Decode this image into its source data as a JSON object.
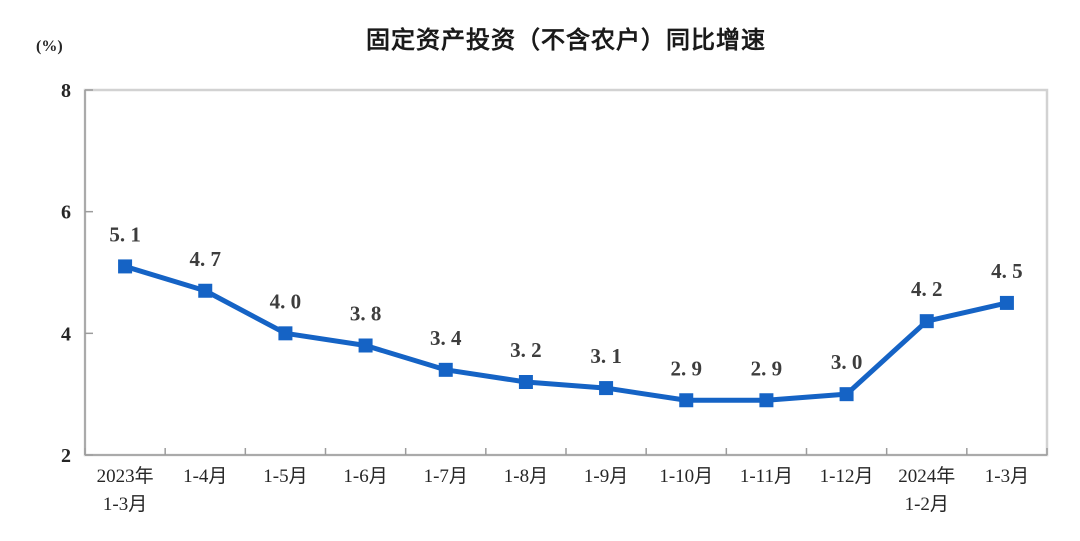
{
  "page": {
    "title": "固定资产投资（不含农户）同比增速",
    "unit_label": "(%)"
  },
  "chart_data": {
    "type": "line",
    "title": "固定资产投资（不含农户）同比增速",
    "ylabel": "(%)",
    "xlabel": "",
    "categories": [
      "2023年\n1-3月",
      "1-4月",
      "1-5月",
      "1-6月",
      "1-7月",
      "1-8月",
      "1-9月",
      "1-10月",
      "1-11月",
      "1-12月",
      "2024年\n1-2月",
      "1-3月"
    ],
    "values": [
      5.1,
      4.7,
      4.0,
      3.8,
      3.4,
      3.2,
      3.1,
      2.9,
      2.9,
      3.0,
      4.2,
      4.5
    ],
    "point_labels": [
      "5. 1",
      "4. 7",
      "4. 0",
      "3. 8",
      "3. 4",
      "3. 2",
      "3. 1",
      "2. 9",
      "2. 9",
      "3. 0",
      "4. 2",
      "4. 5"
    ],
    "ylim": [
      2,
      8
    ],
    "yticks": [
      8,
      6,
      4,
      2
    ],
    "grid": false,
    "legend": "none",
    "marker": "square",
    "colors": {
      "line": "#1563C5",
      "marker": "#1563C5",
      "frame": "#d2d2d2",
      "axis": "#9c9c9c",
      "tick_label": "#262626",
      "point_label": "#3d3d3d"
    }
  }
}
